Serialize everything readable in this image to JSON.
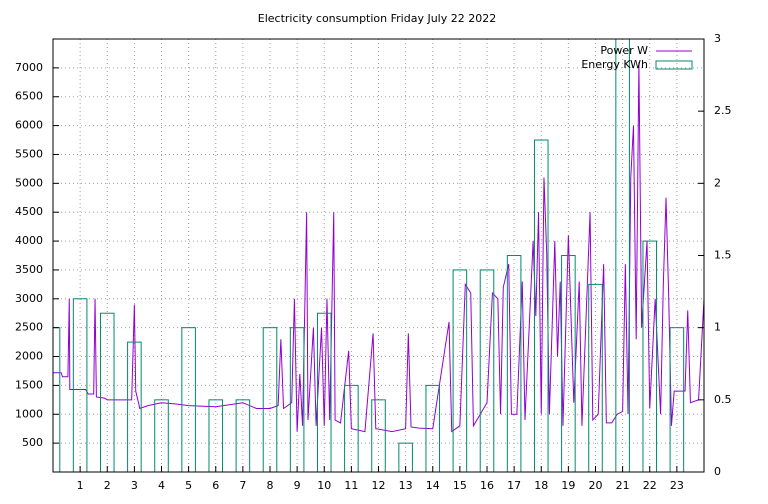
{
  "chart_data": {
    "type": "line",
    "title": "Electricity consumption Friday July 22 2022",
    "xlim": [
      0,
      24
    ],
    "xticks": [
      1,
      2,
      3,
      4,
      5,
      6,
      7,
      8,
      9,
      10,
      11,
      12,
      13,
      14,
      15,
      16,
      17,
      18,
      19,
      20,
      21,
      22,
      23
    ],
    "ylim": [
      0,
      7500
    ],
    "yticks": [
      500,
      1000,
      1500,
      2000,
      2500,
      3000,
      3500,
      4000,
      4500,
      5000,
      5500,
      6000,
      6500,
      7000
    ],
    "y2lim": [
      0,
      3
    ],
    "y2ticks": [
      0,
      0.5,
      1,
      1.5,
      2,
      2.5,
      3
    ],
    "grid": true,
    "legend": "top-right",
    "series": [
      {
        "name": "Power W",
        "color": "#9400d3",
        "kind": "line",
        "x": [
          0,
          0.3,
          0.35,
          0.55,
          0.6,
          0.62,
          1.2,
          1.3,
          1.5,
          1.55,
          1.6,
          1.9,
          2.0,
          2.9,
          3.0,
          3.05,
          3.2,
          3.5,
          4.0,
          4.5,
          5.0,
          6.0,
          7.0,
          7.5,
          8.0,
          8.3,
          8.4,
          8.5,
          8.8,
          8.9,
          9.0,
          9.1,
          9.2,
          9.35,
          9.4,
          9.6,
          9.7,
          9.9,
          10.0,
          10.1,
          10.2,
          10.35,
          10.4,
          10.6,
          10.9,
          11.0,
          11.5,
          11.8,
          11.9,
          12.5,
          13.0,
          13.1,
          13.2,
          13.5,
          14.0,
          14.6,
          14.7,
          15.0,
          15.2,
          15.4,
          15.5,
          16.0,
          16.2,
          16.4,
          16.5,
          16.6,
          16.8,
          16.9,
          17.1,
          17.3,
          17.4,
          17.7,
          17.8,
          17.9,
          18.0,
          18.1,
          18.2,
          18.3,
          18.5,
          18.6,
          18.7,
          18.8,
          19.0,
          19.2,
          19.4,
          19.5,
          19.8,
          19.9,
          20.1,
          20.3,
          20.4,
          20.6,
          20.8,
          21.0,
          21.1,
          21.2,
          21.3,
          21.4,
          21.5,
          21.6,
          21.7,
          21.9,
          22.0,
          22.2,
          22.4,
          22.5,
          22.6,
          22.7,
          22.8,
          22.9,
          23.3,
          23.4,
          23.5,
          23.8,
          24
        ],
        "values": [
          1720,
          1720,
          1650,
          1650,
          3000,
          1430,
          1430,
          1350,
          1350,
          3000,
          1300,
          1280,
          1250,
          1250,
          2900,
          1400,
          1100,
          1150,
          1200,
          1180,
          1150,
          1130,
          1200,
          1100,
          1100,
          1150,
          2300,
          1100,
          1200,
          3000,
          700,
          1700,
          800,
          4500,
          900,
          2500,
          800,
          2500,
          800,
          3000,
          900,
          4500,
          900,
          850,
          2100,
          750,
          700,
          2400,
          750,
          700,
          750,
          2400,
          780,
          760,
          750,
          2600,
          700,
          800,
          3250,
          3100,
          800,
          1200,
          3100,
          3000,
          1000,
          3200,
          3600,
          1000,
          1000,
          3300,
          900,
          4000,
          2700,
          4500,
          1000,
          5100,
          3800,
          1000,
          4000,
          2000,
          3300,
          800,
          4100,
          1200,
          3300,
          800,
          4500,
          900,
          1000,
          3600,
          850,
          850,
          1000,
          1050,
          3600,
          1000,
          5100,
          6000,
          2300,
          7100,
          2500,
          4000,
          1100,
          3000,
          1000,
          3250,
          4750,
          3000,
          800,
          1400,
          1400,
          2800,
          1200,
          1250,
          3000
        ]
      },
      {
        "name": "Energy KWh",
        "color": "#008b6b",
        "kind": "boxes",
        "axis": "y2",
        "x": [
          0,
          1,
          2,
          3,
          4,
          5,
          6,
          7,
          8,
          9,
          10,
          11,
          12,
          13,
          14,
          15,
          16,
          17,
          18,
          19,
          20,
          21,
          22,
          23
        ],
        "values": [
          1.0,
          1.2,
          1.1,
          0.9,
          0.5,
          1.0,
          0.5,
          0.5,
          1.0,
          1.0,
          1.1,
          0.6,
          0.5,
          0.2,
          0.6,
          1.4,
          1.4,
          1.5,
          2.3,
          1.5,
          1.3,
          3.0,
          1.6,
          1.0
        ]
      }
    ]
  }
}
